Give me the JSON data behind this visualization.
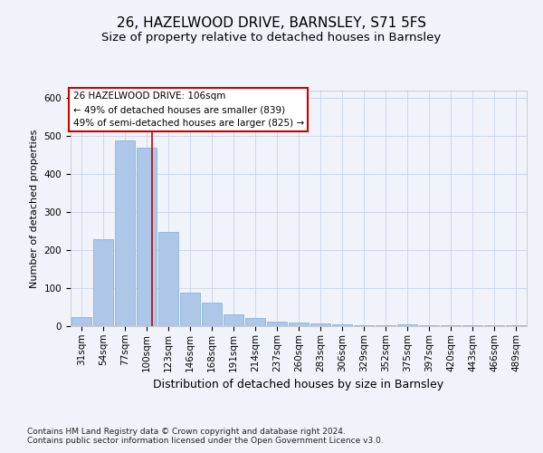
{
  "title1": "26, HAZELWOOD DRIVE, BARNSLEY, S71 5FS",
  "title2": "Size of property relative to detached houses in Barnsley",
  "xlabel": "Distribution of detached houses by size in Barnsley",
  "ylabel": "Number of detached properties",
  "categories": [
    "31sqm",
    "54sqm",
    "77sqm",
    "100sqm",
    "123sqm",
    "146sqm",
    "168sqm",
    "191sqm",
    "214sqm",
    "237sqm",
    "260sqm",
    "283sqm",
    "306sqm",
    "329sqm",
    "352sqm",
    "375sqm",
    "397sqm",
    "420sqm",
    "443sqm",
    "466sqm",
    "489sqm"
  ],
  "values": [
    25,
    230,
    490,
    470,
    248,
    88,
    62,
    30,
    22,
    13,
    10,
    8,
    5,
    3,
    3,
    5,
    3,
    2,
    2,
    2,
    2
  ],
  "bar_color": "#aec6e8",
  "bar_edge_color": "#7bafd4",
  "grid_color": "#c8d4e8",
  "vline_color": "#cc0000",
  "annotation_text": "26 HAZELWOOD DRIVE: 106sqm\n← 49% of detached houses are smaller (839)\n49% of semi-detached houses are larger (825) →",
  "annotation_box_color": "#ffffff",
  "annotation_border_color": "#cc0000",
  "footnote1": "Contains HM Land Registry data © Crown copyright and database right 2024.",
  "footnote2": "Contains public sector information licensed under the Open Government Licence v3.0.",
  "ylim": [
    0,
    620
  ],
  "title1_fontsize": 11,
  "title2_fontsize": 9.5,
  "xlabel_fontsize": 9,
  "ylabel_fontsize": 8,
  "tick_fontsize": 7.5,
  "annotation_fontsize": 7.5,
  "footnote_fontsize": 6.5,
  "background_color": "#f0f4fa"
}
